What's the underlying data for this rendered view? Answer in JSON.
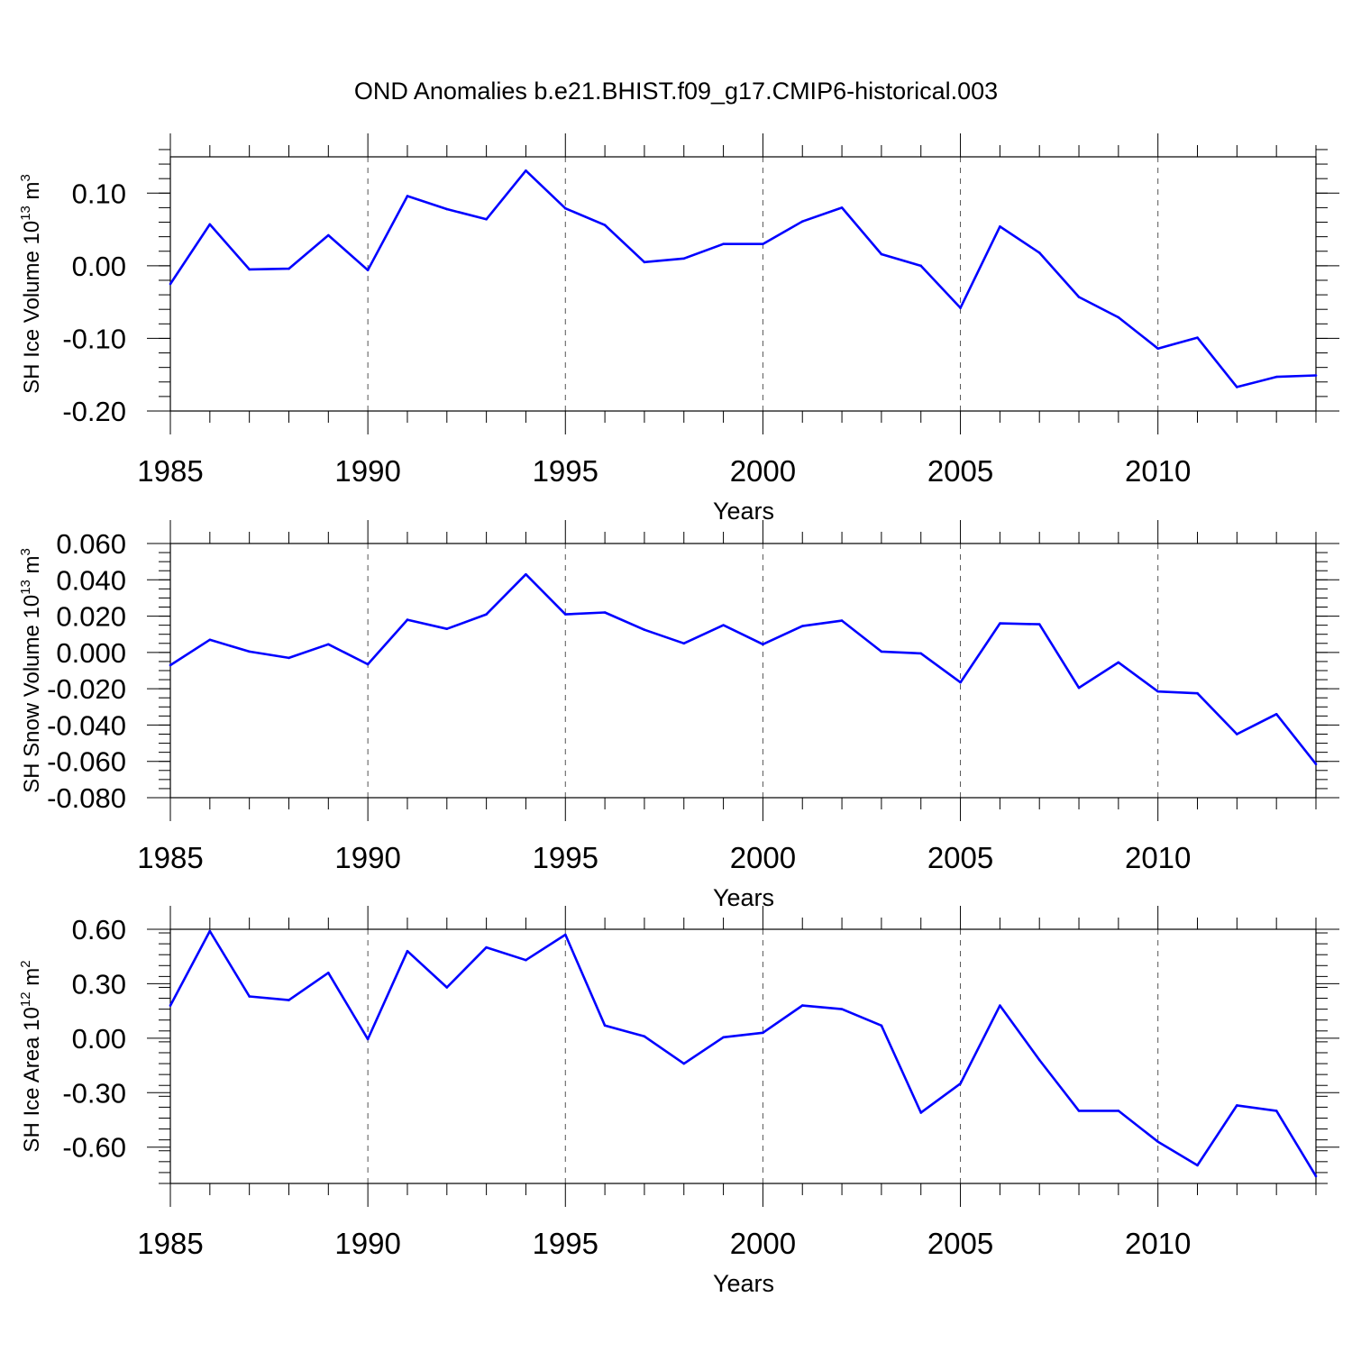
{
  "title": "OND Anomalies b.e21.BHIST.f09_g17.CMIP6-historical.003",
  "line_color": "#0000ff",
  "grid_color": "#555555",
  "chart_data": [
    {
      "type": "line",
      "ylabel_main": "SH Ice Volume 10",
      "ylabel_exp": "13",
      "ylabel_unit": " m",
      "ylabel_unit_exp": "3",
      "xlabel": "Years",
      "xlim": [
        1985,
        2014
      ],
      "ylim": [
        -0.2,
        0.15
      ],
      "x_ticks": [
        1985,
        1990,
        1995,
        2000,
        2005,
        2010
      ],
      "x_tick_labels": [
        "1985",
        "1990",
        "1995",
        "2000",
        "2005",
        "2010"
      ],
      "y_ticks": [
        0.1,
        0.0,
        -0.1,
        -0.2
      ],
      "y_tick_labels": [
        "0.10",
        "0.00",
        "-0.10",
        "-0.20"
      ],
      "y_minor_step": 0.02,
      "grid": "vertical dashed at major x ticks",
      "x": [
        1985,
        1986,
        1987,
        1988,
        1989,
        1990,
        1991,
        1992,
        1993,
        1994,
        1995,
        1996,
        1997,
        1998,
        1999,
        2000,
        2001,
        2002,
        2003,
        2004,
        2005,
        2006,
        2007,
        2008,
        2009,
        2010,
        2011,
        2012,
        2013,
        2014
      ],
      "values": [
        -0.025,
        0.057,
        -0.005,
        -0.004,
        0.042,
        -0.006,
        0.096,
        0.078,
        0.064,
        0.131,
        0.079,
        0.056,
        0.005,
        0.01,
        0.03,
        0.03,
        0.061,
        0.08,
        0.016,
        0.0,
        -0.058,
        0.054,
        0.018,
        -0.043,
        -0.071,
        -0.114,
        -0.099,
        -0.167,
        -0.153,
        -0.151
      ]
    },
    {
      "type": "line",
      "ylabel_main": "SH Snow Volume 10",
      "ylabel_exp": "13",
      "ylabel_unit": " m",
      "ylabel_unit_exp": "3",
      "xlabel": "Years",
      "xlim": [
        1985,
        2014
      ],
      "ylim": [
        -0.08,
        0.06
      ],
      "x_ticks": [
        1985,
        1990,
        1995,
        2000,
        2005,
        2010
      ],
      "x_tick_labels": [
        "1985",
        "1990",
        "1995",
        "2000",
        "2005",
        "2010"
      ],
      "y_ticks": [
        0.06,
        0.04,
        0.02,
        0.0,
        -0.02,
        -0.04,
        -0.06,
        -0.08
      ],
      "y_tick_labels": [
        "0.060",
        "0.040",
        "0.020",
        "0.000",
        "-0.020",
        "-0.040",
        "-0.060",
        "-0.080"
      ],
      "y_minor_step": 0.005,
      "grid": "vertical dashed at major x ticks",
      "x": [
        1985,
        1986,
        1987,
        1988,
        1989,
        1990,
        1991,
        1992,
        1993,
        1994,
        1995,
        1996,
        1997,
        1998,
        1999,
        2000,
        2001,
        2002,
        2003,
        2004,
        2005,
        2006,
        2007,
        2008,
        2009,
        2010,
        2011,
        2012,
        2013,
        2014
      ],
      "values": [
        -0.007,
        0.007,
        0.0005,
        -0.003,
        0.0045,
        -0.0065,
        0.018,
        0.013,
        0.021,
        0.043,
        0.021,
        0.022,
        0.0125,
        0.005,
        0.015,
        0.0045,
        0.0145,
        0.0175,
        0.0005,
        -0.0005,
        -0.0165,
        0.016,
        0.0155,
        -0.0195,
        -0.0055,
        -0.0215,
        -0.0225,
        -0.045,
        -0.034,
        -0.0615
      ]
    },
    {
      "type": "line",
      "ylabel_main": "SH Ice Area 10",
      "ylabel_exp": "12",
      "ylabel_unit": " m",
      "ylabel_unit_exp": "2",
      "xlabel": "Years",
      "xlim": [
        1985,
        2014
      ],
      "ylim": [
        -0.8,
        0.6
      ],
      "x_ticks": [
        1985,
        1990,
        1995,
        2000,
        2005,
        2010
      ],
      "x_tick_labels": [
        "1985",
        "1990",
        "1995",
        "2000",
        "2005",
        "2010"
      ],
      "y_ticks": [
        0.6,
        0.3,
        0.0,
        -0.3,
        -0.6
      ],
      "y_tick_labels": [
        "0.60",
        "0.30",
        "0.00",
        "-0.30",
        "-0.60"
      ],
      "y_minor_step": 0.06,
      "grid": "vertical dashed at major x ticks",
      "x": [
        1985,
        1986,
        1987,
        1988,
        1989,
        1990,
        1991,
        1992,
        1993,
        1994,
        1995,
        1996,
        1997,
        1998,
        1999,
        2000,
        2001,
        2002,
        2003,
        2004,
        2005,
        2006,
        2007,
        2008,
        2009,
        2010,
        2011,
        2012,
        2013,
        2014
      ],
      "values": [
        0.18,
        0.59,
        0.23,
        0.21,
        0.36,
        -0.005,
        0.48,
        0.28,
        0.5,
        0.43,
        0.57,
        0.07,
        0.01,
        -0.14,
        0.005,
        0.03,
        0.18,
        0.16,
        0.07,
        -0.41,
        -0.25,
        0.18,
        -0.12,
        -0.4,
        -0.4,
        -0.57,
        -0.7,
        -0.37,
        -0.4,
        -0.76
      ]
    }
  ]
}
